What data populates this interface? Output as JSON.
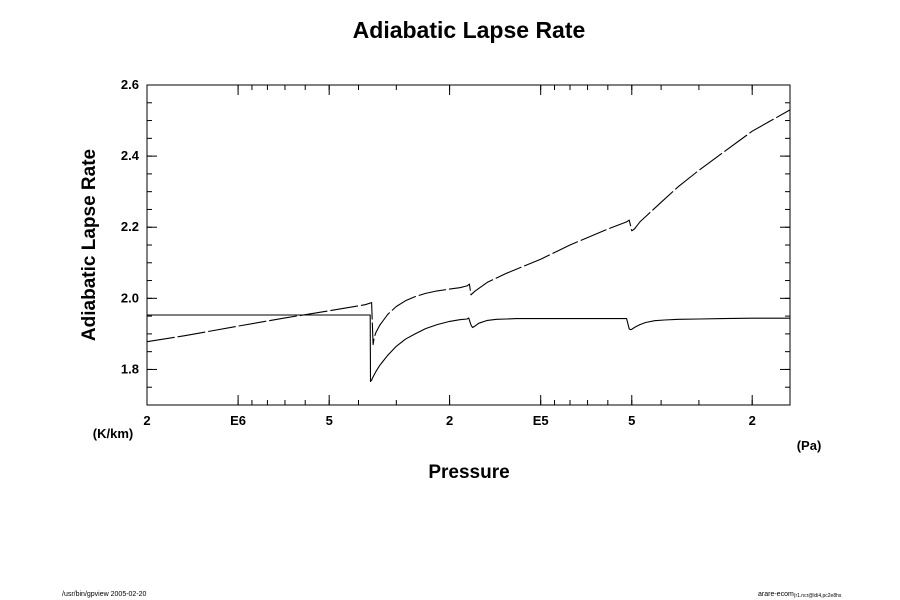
{
  "chart_data": {
    "type": "line",
    "title": "Adiabatic Lapse Rate",
    "xlabel": "Pressure",
    "ylabel": "Adiabatic Lapse Rate",
    "x_unit": "(Pa)",
    "y_unit": "(K/km)",
    "x_scale": "log",
    "xlim": [
      2000000,
      15000
    ],
    "ylim": [
      1.7,
      2.6
    ],
    "x_ticks": [
      {
        "value": 2000000,
        "label": "2"
      },
      {
        "value": 1000000,
        "label": "E6"
      },
      {
        "value": 500000,
        "label": "5"
      },
      {
        "value": 200000,
        "label": "2"
      },
      {
        "value": 100000,
        "label": "E5"
      },
      {
        "value": 50000,
        "label": "5"
      },
      {
        "value": 20000,
        "label": "2"
      }
    ],
    "y_ticks": [
      {
        "value": 1.8,
        "label": "1.8"
      },
      {
        "value": 2.0,
        "label": "2.0"
      },
      {
        "value": 2.2,
        "label": "2.2"
      },
      {
        "value": 2.4,
        "label": "2.4"
      },
      {
        "value": 2.6,
        "label": "2.6"
      }
    ],
    "grid": false,
    "series": [
      {
        "style": "solid",
        "x": [
          2000000,
          1500000,
          1000000,
          700000,
          500000,
          370000,
          366000,
          365000,
          362000,
          360000,
          355000,
          350000,
          340000,
          320000,
          300000,
          280000,
          260000,
          240000,
          220000,
          200000,
          185000,
          175000,
          173000,
          170000,
          168000,
          165000,
          160000,
          150000,
          140000,
          130000,
          120000,
          100000,
          80000,
          60000,
          52000,
          51000,
          50500,
          50000,
          49000,
          47000,
          45000,
          42000,
          39000,
          35000,
          30000,
          25000,
          20000,
          15000
        ],
        "y": [
          1.953,
          1.953,
          1.953,
          1.953,
          1.953,
          1.953,
          1.953,
          1.766,
          1.77,
          1.775,
          1.785,
          1.795,
          1.812,
          1.84,
          1.865,
          1.885,
          1.9,
          1.915,
          1.926,
          1.935,
          1.94,
          1.942,
          1.945,
          1.925,
          1.918,
          1.922,
          1.93,
          1.938,
          1.941,
          1.942,
          1.943,
          1.943,
          1.943,
          1.943,
          1.943,
          1.914,
          1.912,
          1.913,
          1.918,
          1.926,
          1.932,
          1.937,
          1.939,
          1.941,
          1.942,
          1.943,
          1.944,
          1.944
        ]
      },
      {
        "style": "dashed",
        "x": [
          2000000,
          1500000,
          1000000,
          700000,
          500000,
          380000,
          362000,
          358000,
          355000,
          350000,
          340000,
          320000,
          300000,
          280000,
          260000,
          240000,
          220000,
          200000,
          185000,
          175000,
          172000,
          170000,
          165000,
          150000,
          130000,
          100000,
          80000,
          60000,
          52000,
          51000,
          50000,
          49000,
          47000,
          45000,
          40000,
          35000,
          30000,
          25000,
          20000,
          15000
        ],
        "y": [
          1.878,
          1.895,
          1.922,
          1.945,
          1.965,
          1.982,
          1.988,
          1.87,
          1.89,
          1.905,
          1.925,
          1.955,
          1.977,
          1.993,
          2.005,
          2.014,
          2.021,
          2.026,
          2.03,
          2.035,
          2.04,
          2.01,
          2.02,
          2.045,
          2.07,
          2.11,
          2.15,
          2.195,
          2.215,
          2.22,
          2.19,
          2.195,
          2.215,
          2.23,
          2.27,
          2.315,
          2.36,
          2.41,
          2.47,
          2.53
        ]
      }
    ]
  },
  "footer": {
    "left": "/usr/bin/gpview 2005-02-20",
    "right_main": "arare-ecom",
    "right_sub": "(r1.ncr@ldi4,pc2e8hs"
  }
}
